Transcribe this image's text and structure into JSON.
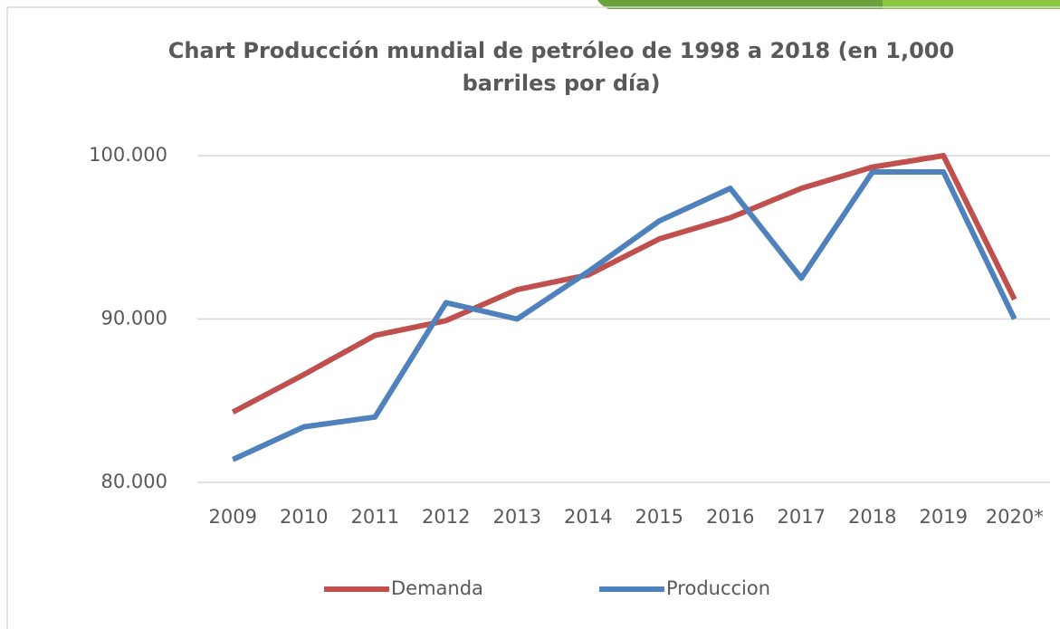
{
  "chart_data": {
    "type": "line",
    "title": "Chart Producción mundial de petróleo de 1998 a 2018 (en 1,000 barriles por día)",
    "categories": [
      "2009",
      "2010",
      "2011",
      "2012",
      "2013",
      "2014",
      "2015",
      "2016",
      "2017",
      "2018",
      "2019",
      "2020*"
    ],
    "series": [
      {
        "name": "Demanda",
        "color": "#c0504d",
        "values": [
          84300,
          86600,
          89000,
          89900,
          91800,
          92700,
          94900,
          96200,
          98000,
          99300,
          100000,
          91200
        ]
      },
      {
        "name": "Produccion",
        "color": "#4f81bd",
        "values": [
          81400,
          83400,
          84000,
          91000,
          90000,
          92900,
          96000,
          98000,
          92500,
          99000,
          99000,
          90000
        ]
      }
    ],
    "ylim": [
      80000,
      100000
    ],
    "yticks": [
      {
        "value": 80000,
        "label": "80.000"
      },
      {
        "value": 90000,
        "label": "90.000"
      },
      {
        "value": 100000,
        "label": "100.000"
      }
    ],
    "grid": true,
    "legend": "bottom"
  }
}
